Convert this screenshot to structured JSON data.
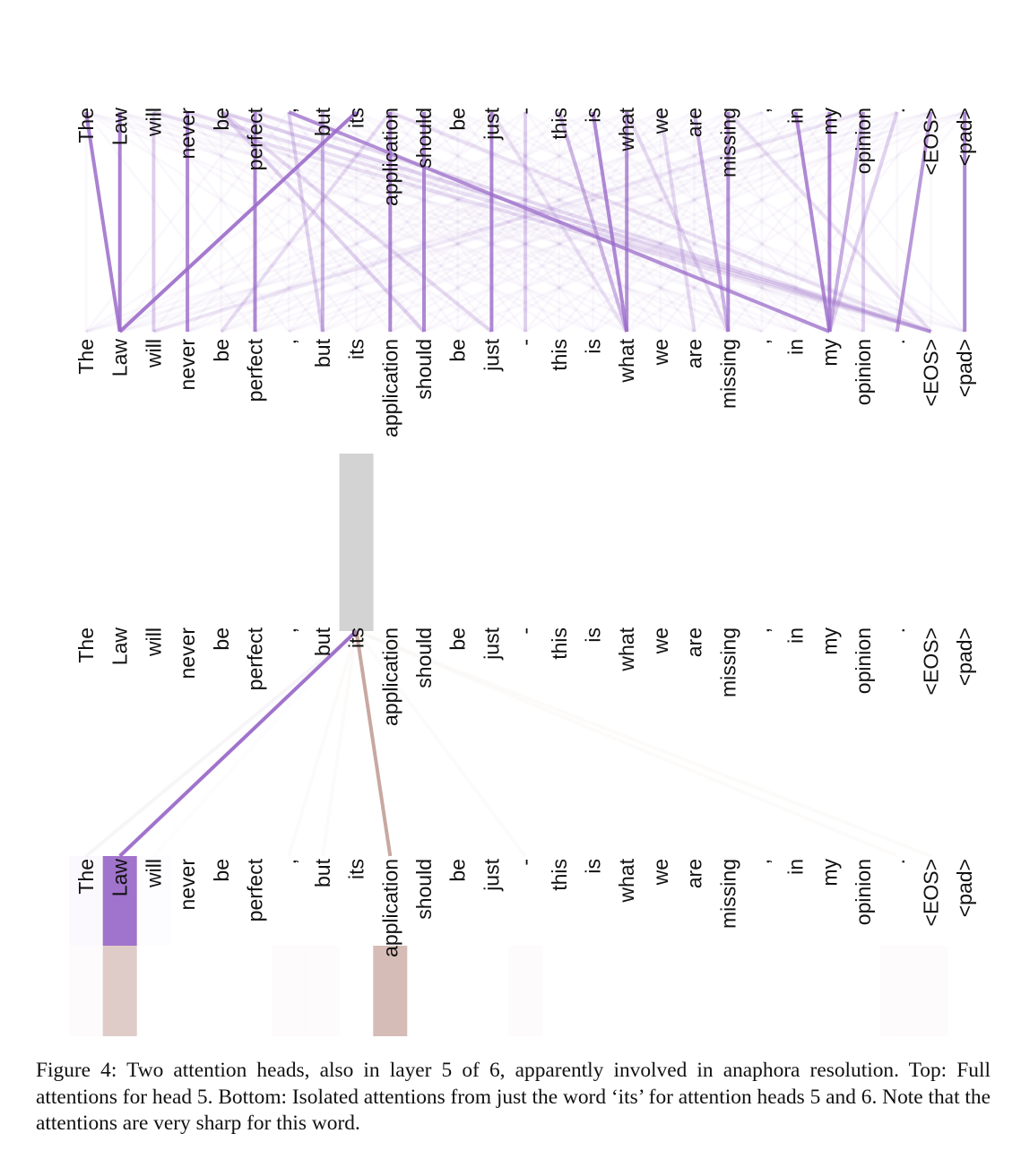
{
  "tokens": [
    "The",
    "Law",
    "will",
    "never",
    "be",
    "perfect",
    ",",
    "but",
    "its",
    "application",
    "should",
    "be",
    "just",
    "-",
    "this",
    "is",
    "what",
    "we",
    "are",
    "missing",
    ",",
    "in",
    "my",
    "opinion",
    ".",
    "<EOS>",
    "<pad>"
  ],
  "colors": {
    "head5": "#9b6cc9",
    "head6": "#b98f86",
    "highlight": "#d3d3d3"
  },
  "top_panel": {
    "strong_links": [
      {
        "from": "The",
        "to": "Law",
        "weight": 0.85
      },
      {
        "from": "Law",
        "to": "Law",
        "weight": 0.85
      },
      {
        "from": "will",
        "to": "will",
        "weight": 0.3
      },
      {
        "from": "never",
        "to": "never",
        "weight": 0.8
      },
      {
        "from": "perfect",
        "to": "perfect",
        "weight": 0.8
      },
      {
        "from": "its",
        "to": "Law",
        "weight": 0.9
      },
      {
        "from": "but",
        "to": "but",
        "weight": 0.5
      },
      {
        "from": "application",
        "to": "application",
        "weight": 0.8
      },
      {
        "from": "should",
        "to": "should",
        "weight": 0.8
      },
      {
        "from": "just",
        "to": "just",
        "weight": 0.8
      },
      {
        "from": "-",
        "to": "-",
        "weight": 0.3
      },
      {
        "from": "this",
        "to": "what",
        "weight": 0.5
      },
      {
        "from": "is",
        "to": "what",
        "weight": 0.8
      },
      {
        "from": "what",
        "to": "what",
        "weight": 0.75
      },
      {
        "from": "are",
        "to": "missing",
        "weight": 0.5
      },
      {
        "from": "missing",
        "to": "missing",
        "weight": 0.75
      },
      {
        "from": ",",
        "to": "my",
        "weight": 0.75
      },
      {
        "from": "in",
        "to": "my",
        "weight": 0.8
      },
      {
        "from": "my",
        "to": "my",
        "weight": 0.8
      },
      {
        "from": "opinion",
        "to": "my",
        "weight": 0.55
      },
      {
        "from": "opinion",
        "to": "opinion",
        "weight": 0.3
      },
      {
        "from": "<EOS>",
        "to": ".",
        "weight": 0.7
      },
      {
        "from": "<pad>",
        "to": "<pad>",
        "weight": 0.8
      },
      {
        "from": "be",
        "to": "should",
        "weight": 0.3
      },
      {
        "from": "be",
        "to": "<EOS>",
        "weight": 0.3
      },
      {
        "from": "be",
        "to": "just",
        "weight": 0.25
      },
      {
        "from": ",",
        "to": "but",
        "weight": 0.3
      },
      {
        "from": "what",
        "to": "missing",
        "weight": 0.25
      },
      {
        "from": "we",
        "to": "are",
        "weight": 0.25
      },
      {
        "from": ".",
        "to": "my",
        "weight": 0.3
      },
      {
        "from": "application",
        "to": "<EOS>",
        "weight": 0.2
      },
      {
        "from": "perfect",
        "to": "<EOS>",
        "weight": 0.2
      },
      {
        "from": "will",
        "to": "<EOS>",
        "weight": 0.2
      },
      {
        "from": "never",
        "to": "<EOS>",
        "weight": 0.2
      },
      {
        "from": "just",
        "to": "what",
        "weight": 0.2
      },
      {
        "from": "missing",
        "to": "<EOS>",
        "weight": 0.2
      },
      {
        "from": "opinion",
        "to": "will",
        "weight": 0.15
      },
      {
        "from": "application",
        "to": "be",
        "weight": 0.2
      }
    ]
  },
  "bottom_panel": {
    "query": "its",
    "head5": {
      "Law": 0.95,
      "The": 0.04,
      "will": 0.02
    },
    "head6": {
      "Law": 0.45,
      "application": 0.6,
      "The": 0.03,
      ",": 0.03,
      "but": 0.03,
      "-": 0.03,
      ".": 0.03,
      "<EOS>": 0.03
    }
  },
  "caption": "Figure 4: Two attention heads, also in layer 5 of 6, apparently involved in anaphora resolution. Top: Full attentions for head 5. Bottom: Isolated attentions from just the word ‘its’ for attention heads 5 and 6. Note that the attentions are very sharp for this word."
}
